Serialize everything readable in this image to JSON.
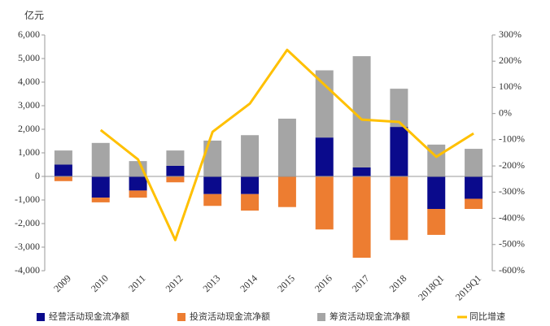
{
  "chart_data": {
    "type": "bar",
    "ylabel": "亿元",
    "categories": [
      "2009",
      "2010",
      "2011",
      "2012",
      "2013",
      "2014",
      "2015",
      "2016",
      "2017",
      "2018",
      "2018Q1",
      "2019Q1"
    ],
    "stacked": true,
    "series": [
      {
        "name": "经营活动现金流净额",
        "color": "#0a0a8c",
        "values": [
          500,
          -900,
          -600,
          450,
          -750,
          -750,
          0,
          1650,
          380,
          2100,
          -1380,
          -950
        ]
      },
      {
        "name": "投资活动现金流净额",
        "color": "#ed7d31",
        "values": [
          -200,
          -200,
          -300,
          -250,
          -500,
          -700,
          -1300,
          -2250,
          -3450,
          -2700,
          -1100,
          -430
        ]
      },
      {
        "name": "筹资活动现金流净额",
        "color": "#a5a5a5",
        "values": [
          600,
          1420,
          650,
          650,
          1520,
          1750,
          2450,
          2850,
          4720,
          1620,
          1350,
          1170
        ]
      },
      {
        "name": "同比增速",
        "color": "#ffc000",
        "type": "line",
        "axis": "y2",
        "values": [
          null,
          -63,
          -175,
          -483,
          -70,
          38,
          243,
          110,
          -23,
          -32,
          -165,
          -76
        ]
      }
    ],
    "ylim": [
      -4000,
      6000
    ],
    "yticks": [
      {
        "value": -4000,
        "label": "-4,000"
      },
      {
        "value": -3000,
        "label": "-3,000"
      },
      {
        "value": -2000,
        "label": "-2,000"
      },
      {
        "value": -1000,
        "label": "-1,000"
      },
      0,
      {
        "value": 1000,
        "label": "1,000"
      },
      {
        "value": 2000,
        "label": "2,000"
      },
      {
        "value": 3000,
        "label": "3,000"
      },
      {
        "value": 4000,
        "label": "4,000"
      },
      {
        "value": 5000,
        "label": "5,000"
      },
      {
        "value": 6000,
        "label": "6,000"
      }
    ],
    "y2lim": [
      -600,
      300
    ],
    "y2ticks": [
      {
        "value": -600,
        "label": "-600%"
      },
      {
        "value": -500,
        "label": "-500%"
      },
      {
        "value": -400,
        "label": "-400%"
      },
      {
        "value": -300,
        "label": "-300%"
      },
      {
        "value": -200,
        "label": "-200%"
      },
      {
        "value": -100,
        "label": "-100%"
      },
      {
        "value": 0,
        "label": "0%"
      },
      {
        "value": 100,
        "label": "100%"
      },
      {
        "value": 200,
        "label": "200%"
      },
      {
        "value": 300,
        "label": "300%"
      }
    ],
    "legend": "bottom"
  }
}
